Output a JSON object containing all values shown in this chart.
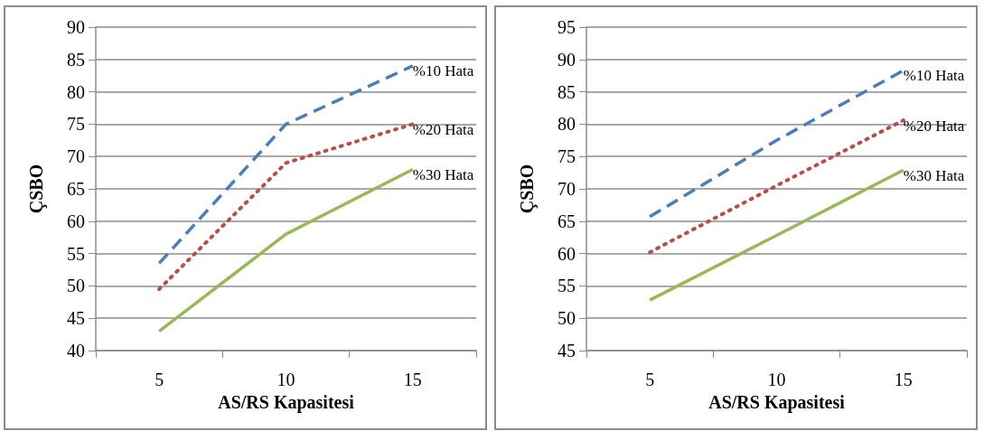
{
  "chart_data": [
    {
      "type": "line",
      "xlabel": "AS/RS Kapasitesi",
      "ylabel": "ÇSBO",
      "categories": [
        "5",
        "10",
        "15"
      ],
      "ylim": [
        40,
        90
      ],
      "yticks": [
        40,
        45,
        50,
        55,
        60,
        65,
        70,
        75,
        80,
        85,
        90
      ],
      "grid": "y",
      "legend": false,
      "marker": "none",
      "series": [
        {
          "name": "%10 Hata",
          "color": "#4a7ebb",
          "line_style": "dashed",
          "values": [
            53.5,
            75,
            84
          ]
        },
        {
          "name": "%20 Hata",
          "color": "#be4b48",
          "line_style": "dotted",
          "values": [
            49.5,
            69,
            75
          ]
        },
        {
          "name": "%30 Hata",
          "color": "#98b954",
          "line_style": "solid",
          "values": [
            43,
            58,
            68
          ]
        }
      ]
    },
    {
      "type": "line",
      "xlabel": "AS/RS Kapasitesi",
      "ylabel": "ÇSBO",
      "categories": [
        "5",
        "10",
        "15"
      ],
      "ylim": [
        45,
        95
      ],
      "yticks": [
        45,
        50,
        55,
        60,
        65,
        70,
        75,
        80,
        85,
        90,
        95
      ],
      "grid": "y",
      "legend": false,
      "marker": "none",
      "series": [
        {
          "name": "%10 Hata",
          "color": "#4a7ebb",
          "line_style": "dashed",
          "values": [
            65.7,
            77.5,
            88.3
          ]
        },
        {
          "name": "%20 Hata",
          "color": "#be4b48",
          "line_style": "dotted",
          "values": [
            60.2,
            70.5,
            80.6
          ]
        },
        {
          "name": "%30 Hata",
          "color": "#98b954",
          "line_style": "solid",
          "values": [
            52.8,
            62.8,
            72.9
          ]
        }
      ]
    }
  ]
}
